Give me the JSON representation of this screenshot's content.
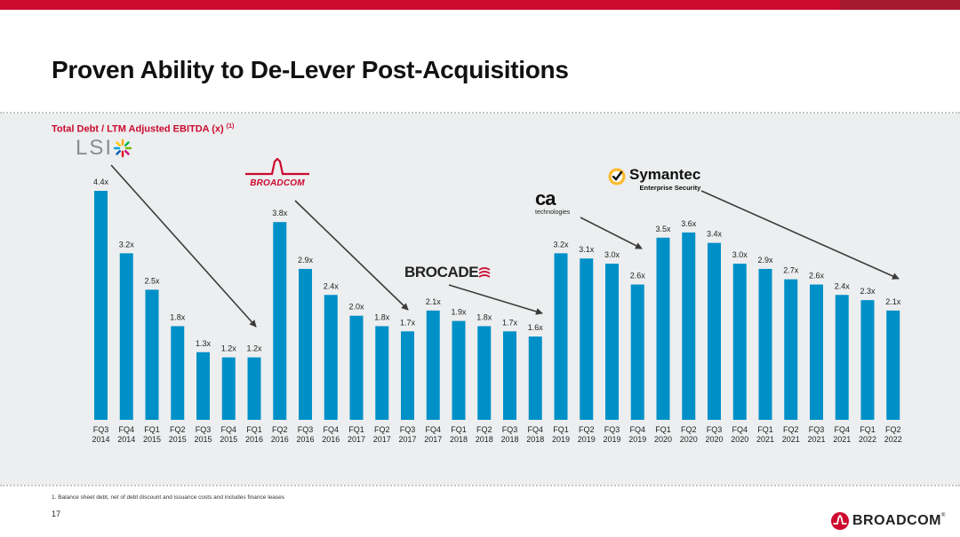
{
  "header": {
    "title": "Proven Ability to De-Lever Post-Acquisitions"
  },
  "colors": {
    "accent": "#cc092f",
    "bar": "#0090c8",
    "panel": "#eceeef"
  },
  "logos": {
    "lsi": "LSI",
    "broadcom_old": "BROADCOM",
    "ca": "ca",
    "ca_sub": "technologies",
    "brocade": "BROCADE",
    "symantec": "Symantec",
    "symantec_sub": "Enterprise Security"
  },
  "chart_data": {
    "type": "bar",
    "title": "Total Debt / LTM Adjusted EBITDA (x)",
    "title_note": "(1)",
    "xlabel": "",
    "ylabel": "",
    "ylim": [
      0,
      4.4
    ],
    "label_suffix": "x",
    "categories": [
      [
        "FQ3",
        "2014"
      ],
      [
        "FQ4",
        "2014"
      ],
      [
        "FQ1",
        "2015"
      ],
      [
        "FQ2",
        "2015"
      ],
      [
        "FQ3",
        "2015"
      ],
      [
        "FQ4",
        "2015"
      ],
      [
        "FQ1",
        "2016"
      ],
      [
        "FQ2",
        "2016"
      ],
      [
        "FQ3",
        "2016"
      ],
      [
        "FQ4",
        "2016"
      ],
      [
        "FQ1",
        "2017"
      ],
      [
        "FQ2",
        "2017"
      ],
      [
        "FQ3",
        "2017"
      ],
      [
        "FQ4",
        "2017"
      ],
      [
        "FQ1",
        "2018"
      ],
      [
        "FQ2",
        "2018"
      ],
      [
        "FQ3",
        "2018"
      ],
      [
        "FQ4",
        "2018"
      ],
      [
        "FQ1",
        "2019"
      ],
      [
        "FQ2",
        "2019"
      ],
      [
        "FQ3",
        "2019"
      ],
      [
        "FQ4",
        "2019"
      ],
      [
        "FQ1",
        "2020"
      ],
      [
        "FQ2",
        "2020"
      ],
      [
        "FQ3",
        "2020"
      ],
      [
        "FQ4",
        "2020"
      ],
      [
        "FQ1",
        "2021"
      ],
      [
        "FQ2",
        "2021"
      ],
      [
        "FQ3",
        "2021"
      ],
      [
        "FQ4",
        "2021"
      ],
      [
        "FQ1",
        "2022"
      ],
      [
        "FQ2",
        "2022"
      ]
    ],
    "values": [
      4.4,
      3.2,
      2.5,
      1.8,
      1.3,
      1.2,
      1.2,
      3.8,
      2.9,
      2.4,
      2.0,
      1.8,
      1.7,
      2.1,
      1.9,
      1.8,
      1.7,
      1.6,
      3.2,
      3.1,
      3.0,
      2.6,
      3.5,
      3.6,
      3.4,
      3.0,
      2.9,
      2.7,
      2.6,
      2.4,
      2.3,
      2.1
    ],
    "annotations": [
      {
        "logo": "LSI",
        "from_index": 0,
        "to_index": 6
      },
      {
        "logo": "BROADCOM",
        "from_index": 7,
        "to_index": 12
      },
      {
        "logo": "BROCADE",
        "from_index": 13,
        "to_index": 17
      },
      {
        "logo": "ca technologies",
        "from_index": 18,
        "to_index": 21
      },
      {
        "logo": "Symantec Enterprise Security",
        "from_index": 25,
        "to_index": 31
      }
    ]
  },
  "footer": {
    "footnote": "1.  Balance sheet debt, net of debt discount and issuance costs and includes finance leases",
    "page_number": "17",
    "brand": "BROADCOM",
    "brand_mark": "®"
  }
}
